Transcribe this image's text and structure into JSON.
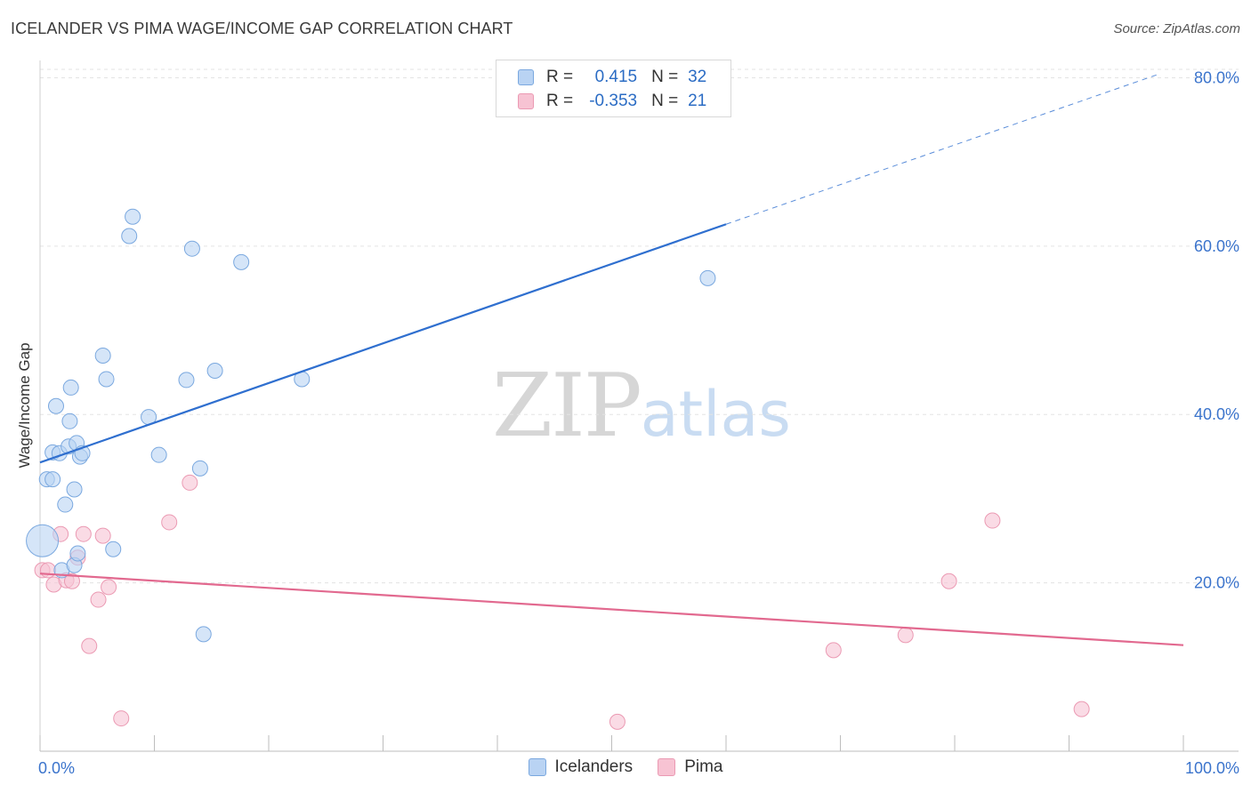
{
  "title": "ICELANDER VS PIMA WAGE/INCOME GAP CORRELATION CHART",
  "source": "Source: ZipAtlas.com",
  "watermark": {
    "zip": "ZIP",
    "atlas": "atlas"
  },
  "legend": {
    "rows": [
      {
        "r_label": "R =",
        "r_value": "0.415",
        "n_label": "N =",
        "n_value": "32"
      },
      {
        "r_label": "R =",
        "r_value": "-0.353",
        "n_label": "N =",
        "n_value": "21"
      }
    ]
  },
  "bottom_legend": {
    "icelanders": "Icelanders",
    "pima": "Pima"
  },
  "chart_data": {
    "type": "scatter",
    "title": "ICELANDER VS PIMA WAGE/INCOME GAP CORRELATION CHART",
    "xlabel": "",
    "ylabel": "Wage/Income Gap",
    "xlim": [
      0,
      100
    ],
    "ylim": [
      0,
      81
    ],
    "x_tick_labels": [
      "0.0%",
      "100.0%"
    ],
    "y_ticks": [
      20,
      40,
      60,
      80
    ],
    "y_tick_labels": [
      "20.0%",
      "40.0%",
      "60.0%",
      "80.0%"
    ],
    "grid": true,
    "legend_position": "top-center",
    "colors": {
      "icelanders_fill": "#b9d3f3",
      "icelanders_stroke": "#7aa8df",
      "icelanders_line": "#2f6fcf",
      "pima_fill": "#f7c3d3",
      "pima_stroke": "#eb9ab3",
      "pima_line": "#e2698f",
      "tick_text": "#3b74cc"
    },
    "series": [
      {
        "name": "Icelanders",
        "r": 0.415,
        "n": 32,
        "points": [
          [
            0.2,
            25.0,
            "big"
          ],
          [
            0.6,
            32.3
          ],
          [
            1.1,
            32.3
          ],
          [
            1.1,
            35.5
          ],
          [
            1.4,
            41.0
          ],
          [
            1.7,
            35.4
          ],
          [
            1.9,
            21.5
          ],
          [
            2.2,
            29.3
          ],
          [
            2.5,
            36.2
          ],
          [
            2.6,
            39.2
          ],
          [
            2.7,
            43.2
          ],
          [
            3.0,
            31.1
          ],
          [
            3.0,
            22.1
          ],
          [
            3.2,
            36.6
          ],
          [
            3.3,
            23.5
          ],
          [
            3.5,
            35.0
          ],
          [
            3.7,
            35.4
          ],
          [
            5.5,
            47.0
          ],
          [
            5.8,
            44.2
          ],
          [
            6.4,
            24.0
          ],
          [
            7.8,
            61.2
          ],
          [
            8.1,
            63.5
          ],
          [
            9.5,
            39.7
          ],
          [
            10.4,
            35.2
          ],
          [
            12.8,
            44.1
          ],
          [
            13.3,
            59.7
          ],
          [
            14.0,
            33.6
          ],
          [
            14.3,
            13.9
          ],
          [
            15.3,
            45.2
          ],
          [
            17.6,
            58.1
          ],
          [
            22.9,
            44.2
          ],
          [
            58.4,
            56.2
          ]
        ],
        "trend": {
          "x_start": 0,
          "y_start": 34.3,
          "x_solid_end": 60,
          "y_solid_end": 62.6,
          "x_end": 98,
          "y_end": 80.5
        }
      },
      {
        "name": "Pima",
        "r": -0.353,
        "n": 21,
        "points": [
          [
            0.2,
            21.5
          ],
          [
            0.7,
            21.5
          ],
          [
            1.2,
            19.8
          ],
          [
            1.8,
            25.8
          ],
          [
            2.3,
            20.3
          ],
          [
            2.8,
            20.2
          ],
          [
            3.3,
            23.0
          ],
          [
            3.8,
            25.8
          ],
          [
            4.3,
            12.5
          ],
          [
            5.1,
            18.0
          ],
          [
            5.5,
            25.6
          ],
          [
            6.0,
            19.5
          ],
          [
            7.1,
            3.9
          ],
          [
            11.3,
            27.2
          ],
          [
            13.1,
            31.9
          ],
          [
            50.5,
            3.5
          ],
          [
            69.4,
            12.0
          ],
          [
            75.7,
            13.8
          ],
          [
            79.5,
            20.2
          ],
          [
            83.3,
            27.4
          ],
          [
            91.1,
            5.0
          ]
        ],
        "trend": {
          "x_start": 0,
          "y_start": 21.1,
          "x_end": 100,
          "y_end": 12.6
        }
      }
    ]
  }
}
